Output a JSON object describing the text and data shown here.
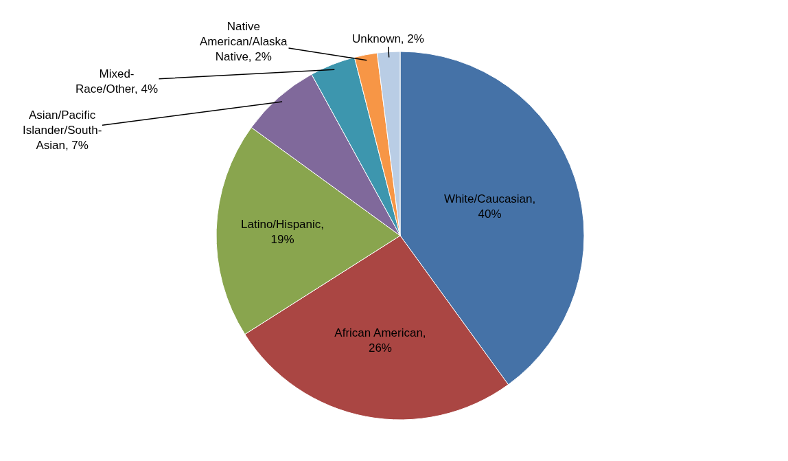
{
  "chart_data": {
    "type": "pie",
    "categories": [
      "White/Caucasian, 40%",
      "African American, 26%",
      "Latino/Hispanic, 19%",
      "Asian/Pacific Islander/South-Asian, 7%",
      "Mixed-Race/Other, 4%",
      "Native American/Alaska Native, 2%",
      "Unknown, 2%"
    ],
    "values": [
      40,
      26,
      19,
      7,
      4,
      2,
      2
    ],
    "colors": [
      "#4572a7",
      "#aa4643",
      "#89a54e",
      "#80699b",
      "#3d96ae",
      "#f79646",
      "#b9cde5"
    ],
    "legend": false
  }
}
